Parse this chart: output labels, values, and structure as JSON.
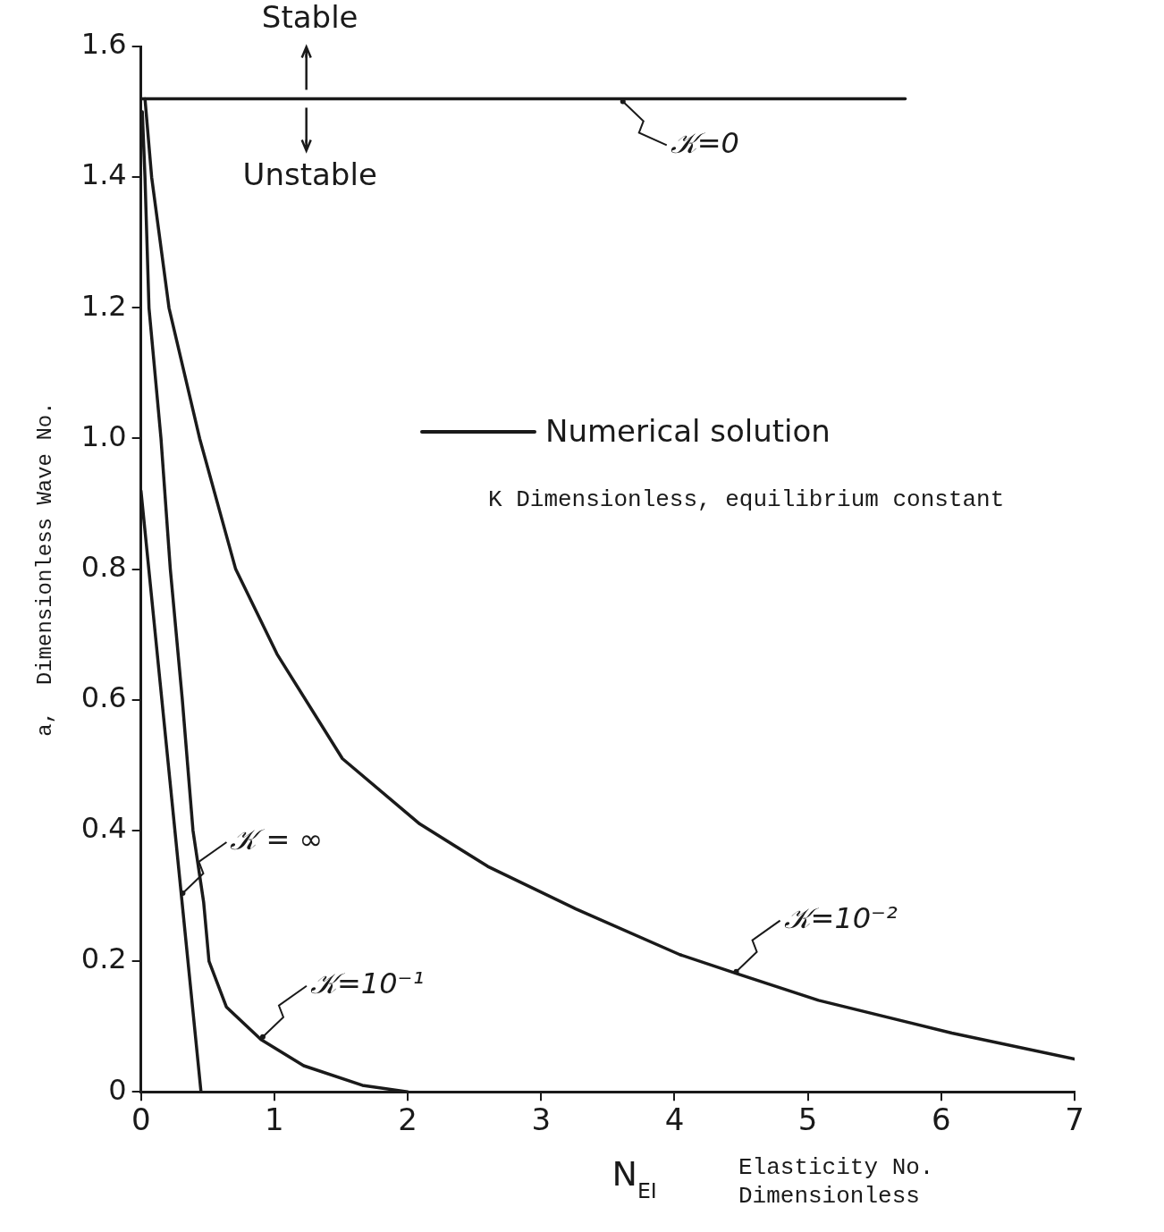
{
  "chart_data": {
    "type": "line",
    "xlabel": "N$_{EI}$",
    "ylabel": "a,  Dimensionless Wave No.",
    "xlim": [
      0,
      7
    ],
    "ylim": [
      0,
      1.6
    ],
    "xticks": [
      0,
      1,
      2,
      3,
      4,
      5,
      6,
      7
    ],
    "yticks": [
      0,
      0.2,
      0.4,
      0.6,
      0.8,
      {
        "value": 1,
        "label": "1.0"
      },
      1.2,
      1.4,
      1.6
    ],
    "grid": false,
    "legend": false,
    "marker": "none",
    "line_style": "solid",
    "series": [
      {
        "color": "#1a1a1a",
        "x": [
          0,
          5.73
        ],
        "values": [
          1.52,
          1.52
        ]
      },
      {
        "color": "#1a1a1a",
        "x": [
          0,
          0.45
        ],
        "values": [
          0.92,
          0
        ]
      },
      {
        "color": "#1a1a1a",
        "x": [
          0.01,
          0.03,
          0.06,
          0.15,
          0.22,
          0.31,
          0.39,
          0.47,
          0.51,
          0.64,
          0.9,
          1.22,
          1.66,
          2.0
        ],
        "values": [
          1.5,
          1.4,
          1.2,
          1.0,
          0.8,
          0.6,
          0.4,
          0.29,
          0.2,
          0.13,
          0.08,
          0.04,
          0.01,
          0
        ]
      },
      {
        "color": "#1a1a1a",
        "x": [
          0.03,
          0.08,
          0.21,
          0.44,
          0.71,
          1.02,
          1.51,
          2.09,
          2.6,
          3.26,
          4.04,
          4.48,
          5.08,
          6.08,
          7
        ],
        "values": [
          1.52,
          1.4,
          1.2,
          1.0,
          0.8,
          0.67,
          0.51,
          0.41,
          0.345,
          0.28,
          0.21,
          0.18,
          0.14,
          0.09,
          0.05
        ]
      }
    ],
    "annotations": [
      {
        "text": "𝒦=0",
        "x": 3.6,
        "y": 1.52
      },
      {
        "text": "𝒦 = ∞",
        "x": 0.3,
        "y": 0.3
      },
      {
        "text": "𝒦=10⁻¹",
        "x": 0.9,
        "y": 0.08
      },
      {
        "text": "𝒦=10⁻²",
        "x": 4.45,
        "y": 0.18
      },
      {
        "text": "Stable",
        "x": 1.24,
        "y": 1.52
      },
      {
        "text": "Unstable",
        "x": 1.24,
        "y": 1.52
      },
      "Numerical solution",
      "K   Dimensionless, equilibrium constant",
      "Elasticity No. Dimensionless"
    ]
  }
}
